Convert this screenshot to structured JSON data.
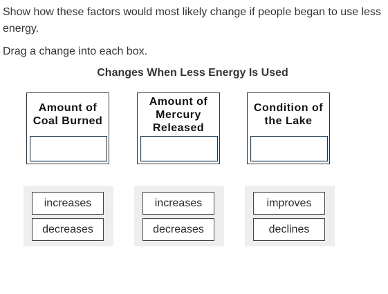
{
  "question": {
    "prompt": "Show how these factors would most likely change if people began to use less energy.",
    "instruction": "Drag a change into each box."
  },
  "table": {
    "title": "Changes When Less Energy Is Used",
    "columns": [
      {
        "heading": "Amount of Coal Burned",
        "slot_value": ""
      },
      {
        "heading": "Amount of Mercury Released",
        "slot_value": ""
      },
      {
        "heading": "Condition of the Lake",
        "slot_value": ""
      }
    ]
  },
  "choices": [
    {
      "options": [
        "increases",
        "decreases"
      ]
    },
    {
      "options": [
        "increases",
        "decreases"
      ]
    },
    {
      "options": [
        "improves",
        "declines"
      ]
    }
  ]
}
